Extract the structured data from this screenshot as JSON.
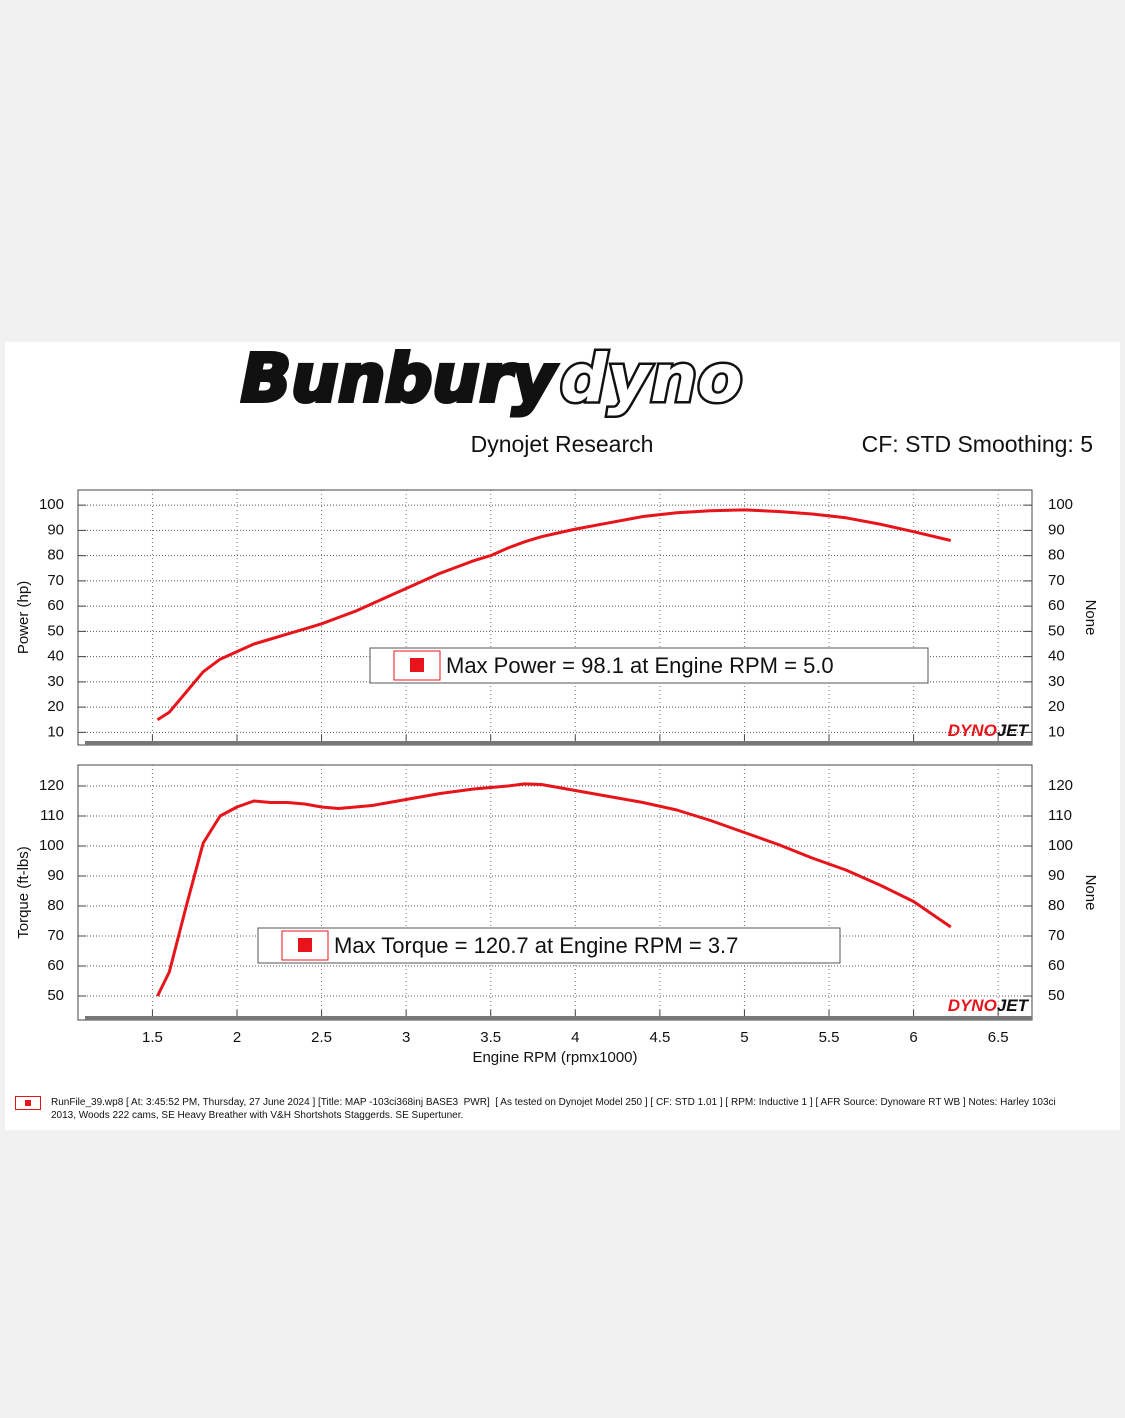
{
  "branding": {
    "logo_left": "Bunbury",
    "logo_right": "dyno",
    "watermark_left": "DYNO",
    "watermark_right": "JET"
  },
  "header": {
    "subtitle": "Dynojet Research",
    "settings": "CF: STD Smoothing: 5"
  },
  "chart_data": [
    {
      "type": "line",
      "ylabel": "Power (hp)",
      "y2label": "None",
      "color": "#e8141b",
      "grid": true,
      "annotation": "Max Power = 98.1 at Engine RPM = 5.0",
      "xlim": [
        1.06,
        6.7
      ],
      "xticks": [
        1.5,
        2.0,
        2.5,
        3.0,
        3.5,
        4.0,
        4.5,
        5.0,
        5.5,
        6.0,
        6.5
      ],
      "ylim": [
        5,
        106
      ],
      "yticks": [
        10,
        20,
        30,
        40,
        50,
        60,
        70,
        80,
        90,
        100
      ],
      "x": [
        1.53,
        1.6,
        1.7,
        1.8,
        1.9,
        2.0,
        2.1,
        2.2,
        2.3,
        2.4,
        2.5,
        2.6,
        2.7,
        2.8,
        2.9,
        3.0,
        3.1,
        3.2,
        3.3,
        3.4,
        3.5,
        3.6,
        3.7,
        3.8,
        3.9,
        4.0,
        4.2,
        4.4,
        4.6,
        4.8,
        5.0,
        5.2,
        5.4,
        5.6,
        5.8,
        6.0,
        6.22
      ],
      "values": [
        15,
        18,
        26,
        34,
        39,
        42,
        45,
        47,
        49,
        51,
        53,
        55.5,
        58,
        61,
        64,
        67,
        70,
        73,
        75.5,
        78,
        80,
        83,
        85.5,
        87.5,
        89,
        90.5,
        93,
        95.5,
        97,
        97.8,
        98.1,
        97.5,
        96.5,
        95,
        92.5,
        89.5,
        86
      ]
    },
    {
      "type": "line",
      "ylabel": "Torque (ft-lbs)",
      "y2label": "None",
      "xlabel": "Engine RPM (rpmx1000)",
      "color": "#e8141b",
      "grid": true,
      "annotation": "Max Torque = 120.7 at Engine RPM = 3.7",
      "xlim": [
        1.06,
        6.7
      ],
      "xticks": [
        1.5,
        2.0,
        2.5,
        3.0,
        3.5,
        4.0,
        4.5,
        5.0,
        5.5,
        6.0,
        6.5
      ],
      "ylim": [
        42,
        127
      ],
      "yticks": [
        50,
        60,
        70,
        80,
        90,
        100,
        110,
        120
      ],
      "x": [
        1.53,
        1.6,
        1.7,
        1.8,
        1.9,
        2.0,
        2.1,
        2.2,
        2.3,
        2.4,
        2.5,
        2.6,
        2.7,
        2.8,
        2.9,
        3.0,
        3.2,
        3.4,
        3.6,
        3.7,
        3.8,
        4.0,
        4.2,
        4.4,
        4.6,
        4.8,
        5.0,
        5.2,
        5.4,
        5.6,
        5.8,
        6.0,
        6.22
      ],
      "values": [
        50,
        58,
        80,
        101,
        110,
        113,
        115,
        114.5,
        114.5,
        114,
        113,
        112.5,
        113,
        113.5,
        114.5,
        115.5,
        117.5,
        119,
        120,
        120.7,
        120.5,
        118.5,
        116.5,
        114.5,
        112,
        108.5,
        104.5,
        100.5,
        96,
        92,
        87,
        81.5,
        73
      ]
    }
  ],
  "footer": {
    "text": "RunFile_39.wp8 [ At: 3:45:52 PM, Thursday, 27 June 2024 ] [Title: MAP -103ci368inj BASE3  PWR]  [ As tested on Dynojet Model 250 ] [ CF: STD 1.01 ] [ RPM: Inductive 1 ] [ AFR Source: Dynoware RT WB ] Notes: Harley 103ci 2013, Woods 222 cams, SE Heavy Breather with V&H Shortshots Staggerds. SE Supertuner."
  }
}
